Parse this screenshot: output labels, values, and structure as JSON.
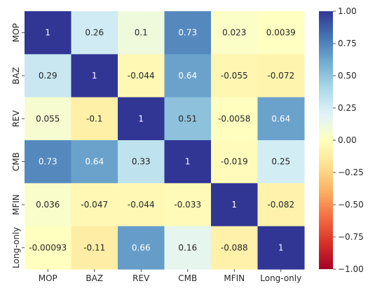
{
  "chart_data": {
    "type": "heatmap",
    "x_labels": [
      "MOP",
      "BAZ",
      "REV",
      "CMB",
      "MFIN",
      "Long-only"
    ],
    "y_labels": [
      "MOP",
      "BAZ",
      "REV",
      "CMB",
      "MFIN",
      "Long-only"
    ],
    "values": [
      [
        1,
        0.26,
        0.1,
        0.73,
        0.023,
        0.0039
      ],
      [
        0.29,
        1,
        -0.044,
        0.64,
        -0.055,
        -0.072
      ],
      [
        0.055,
        -0.1,
        1,
        0.51,
        -0.0058,
        0.64
      ],
      [
        0.73,
        0.64,
        0.33,
        1,
        -0.019,
        0.25
      ],
      [
        0.036,
        -0.047,
        -0.044,
        -0.033,
        1,
        -0.082
      ],
      [
        -0.00093,
        -0.11,
        0.66,
        0.16,
        -0.088,
        1
      ]
    ],
    "cell_text": [
      [
        "1",
        "0.26",
        "0.1",
        "0.73",
        "0.023",
        "0.0039"
      ],
      [
        "0.29",
        "1",
        "-0.044",
        "0.64",
        "-0.055",
        "-0.072"
      ],
      [
        "0.055",
        "-0.1",
        "1",
        "0.51",
        "-0.0058",
        "0.64"
      ],
      [
        "0.73",
        "0.64",
        "0.33",
        "1",
        "-0.019",
        "0.25"
      ],
      [
        "0.036",
        "-0.047",
        "-0.044",
        "-0.033",
        "1",
        "-0.082"
      ],
      [
        "-0.00093",
        "-0.11",
        "0.66",
        "0.16",
        "-0.088",
        "1"
      ]
    ],
    "colormap": "RdYlBu",
    "vmin": -1,
    "vmax": 1,
    "colorbar": {
      "ticks": [
        1.0,
        0.75,
        0.5,
        0.25,
        0.0,
        -0.25,
        -0.5,
        -0.75,
        -1.0
      ],
      "tick_labels": [
        "1.00",
        "0.75",
        "0.50",
        "0.25",
        "0.00",
        "−0.25",
        "−0.50",
        "−0.75",
        "−1.00"
      ]
    },
    "annotation_colors": {
      "dark_text": "#262626",
      "light_text": "#ffffff"
    }
  }
}
